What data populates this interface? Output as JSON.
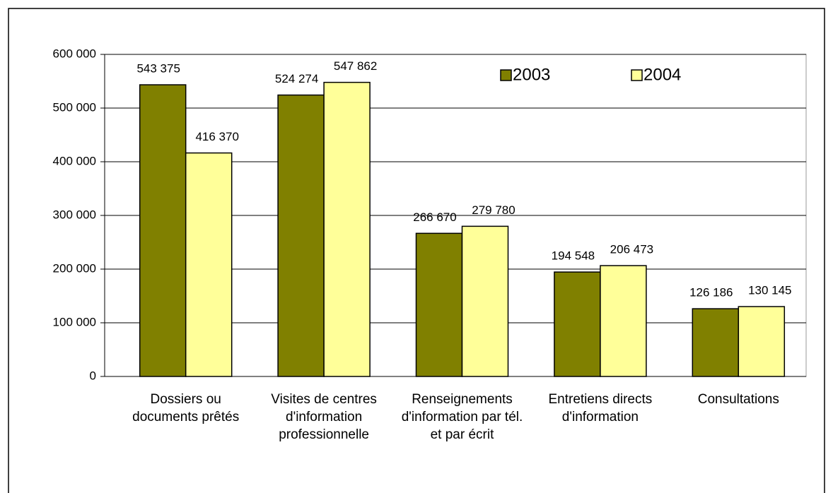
{
  "chart_data": {
    "type": "bar",
    "categories": [
      "Dossiers ou documents prêtés",
      "Visites de centres d'information professionnelle",
      "Renseignements d'information par tél. et par écrit",
      "Entretiens directs d'information",
      "Consultations"
    ],
    "series": [
      {
        "name": "2003",
        "color": "#808000",
        "values": [
          543375,
          524274,
          266670,
          194548,
          126186
        ],
        "value_labels": [
          "543 375",
          "524 274",
          "266 670",
          "194 548",
          "126 186"
        ]
      },
      {
        "name": "2004",
        "color": "#ffff99",
        "values": [
          416370,
          547862,
          279780,
          206473,
          130145
        ],
        "value_labels": [
          "416 370",
          "547 862",
          "279 780",
          "206 473",
          "130 145"
        ]
      }
    ],
    "ylim": [
      0,
      600000
    ],
    "yticks": [
      0,
      {
        "value": 100000,
        "label": "100 000"
      },
      {
        "value": 200000,
        "label": "200 000"
      },
      {
        "value": 300000,
        "label": "300 000"
      },
      {
        "value": 400000,
        "label": "400 000"
      },
      {
        "value": 500000,
        "label": "500 000"
      },
      {
        "value": 600000,
        "label": "600 000"
      }
    ],
    "grid": true,
    "legend": "top-right"
  }
}
